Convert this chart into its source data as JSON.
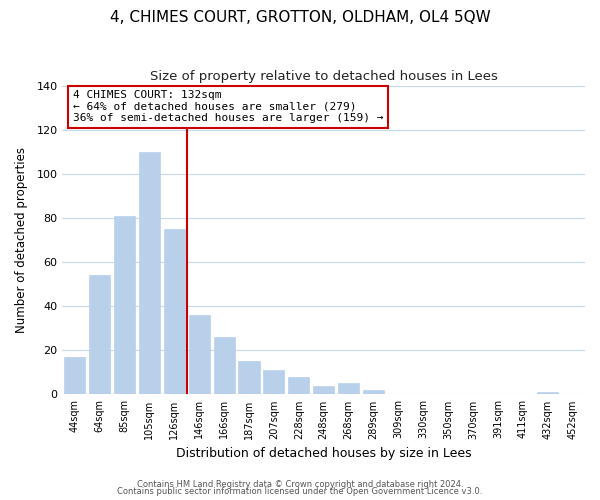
{
  "title": "4, CHIMES COURT, GROTTON, OLDHAM, OL4 5QW",
  "subtitle": "Size of property relative to detached houses in Lees",
  "xlabel": "Distribution of detached houses by size in Lees",
  "ylabel": "Number of detached properties",
  "footer_line1": "Contains HM Land Registry data © Crown copyright and database right 2024.",
  "footer_line2": "Contains public sector information licensed under the Open Government Licence v3.0.",
  "categories": [
    "44sqm",
    "64sqm",
    "85sqm",
    "105sqm",
    "126sqm",
    "146sqm",
    "166sqm",
    "187sqm",
    "207sqm",
    "228sqm",
    "248sqm",
    "268sqm",
    "289sqm",
    "309sqm",
    "330sqm",
    "350sqm",
    "370sqm",
    "391sqm",
    "411sqm",
    "432sqm",
    "452sqm"
  ],
  "values": [
    17,
    54,
    81,
    110,
    75,
    36,
    26,
    15,
    11,
    8,
    4,
    5,
    2,
    0,
    0,
    0,
    0,
    0,
    0,
    1,
    0
  ],
  "bar_color": "#b8d0ea",
  "vline_x": 4.5,
  "vline_color": "#cc0000",
  "annotation_title": "4 CHIMES COURT: 132sqm",
  "annotation_line1": "← 64% of detached houses are smaller (279)",
  "annotation_line2": "36% of semi-detached houses are larger (159) →",
  "annotation_box_color": "#ffffff",
  "annotation_box_edge": "#cc0000",
  "ylim": [
    0,
    140
  ],
  "yticks": [
    0,
    20,
    40,
    60,
    80,
    100,
    120,
    140
  ],
  "background_color": "#ffffff",
  "grid_color": "#c8daea",
  "title_fontsize": 11,
  "subtitle_fontsize": 9.5
}
